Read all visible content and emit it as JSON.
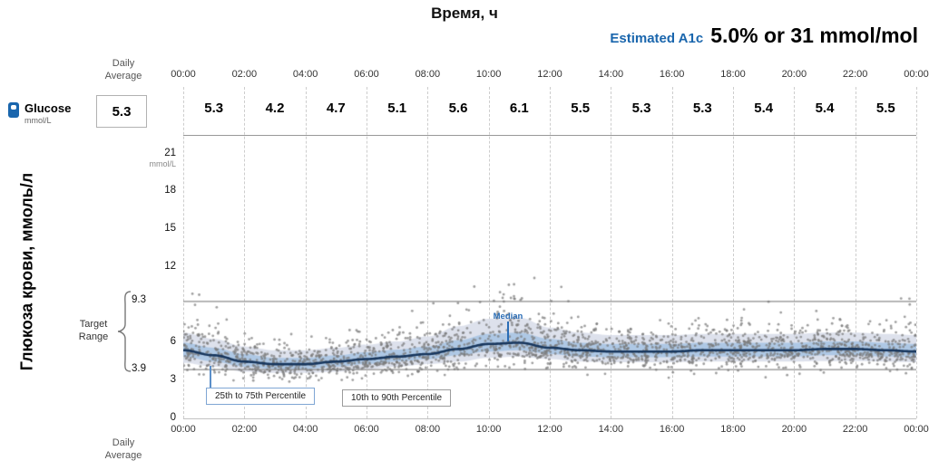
{
  "title": {
    "top": "Время, ч"
  },
  "a1c": {
    "label": "Estimated A1c",
    "value": "5.0% or 31 mmol/mol"
  },
  "left_panel": {
    "daily_average_label": "Daily Average",
    "glucose_label": "Glucose",
    "glucose_unit": "mmol/L",
    "glucose_daily_average": "5.3",
    "y_axis_title": "Глюкоза крови, ммоль/л",
    "target_range_label": "Target Range"
  },
  "legend": {
    "p25_75": "25th to 75th Percentile",
    "p10_90": "10th to 90th Percentile",
    "median": "Median"
  },
  "colors": {
    "accent_blue": "#1a66ad",
    "median_line": "#17365d",
    "median_label": "#2a6db6",
    "band_25_75": "rgba(167,196,228,0.85)",
    "band_10_90": "rgba(213,218,231,0.8)",
    "dot": "#787878",
    "grid": "#cdcdcd",
    "target_line": "#8a8a8a"
  },
  "chart_data": {
    "type": "line",
    "title": "Время, ч",
    "xlabel": "Время, ч",
    "ylabel": "Глюкоза крови, ммоль/л",
    "ylim": [
      0,
      21
    ],
    "grid": "vertical-dashed",
    "legend_position": "bottom-left-inside",
    "target_range": [
      3.9,
      9.3
    ],
    "x_tick_labels": [
      "00:00",
      "02:00",
      "04:00",
      "06:00",
      "08:00",
      "10:00",
      "12:00",
      "14:00",
      "16:00",
      "18:00",
      "20:00",
      "22:00",
      "00:00"
    ],
    "y_ticks": [
      {
        "value": 21,
        "label": "21",
        "unit": "mmol/L"
      },
      {
        "value": 18,
        "label": "18"
      },
      {
        "value": 15,
        "label": "15"
      },
      {
        "value": 12,
        "label": "12"
      },
      {
        "value": 9.3,
        "label": "9.3",
        "outer": true
      },
      {
        "value": 6,
        "label": "6"
      },
      {
        "value": 3.9,
        "label": "3.9",
        "outer": true
      },
      {
        "value": 3,
        "label": "3"
      },
      {
        "value": 0,
        "label": "0"
      }
    ],
    "daily_averages": [
      "5.3",
      "4.2",
      "4.7",
      "5.1",
      "5.6",
      "6.1",
      "5.5",
      "5.3",
      "5.3",
      "5.4",
      "5.4",
      "5.5"
    ],
    "overall_daily_average": "5.3",
    "x_hours": [
      0,
      1,
      2,
      3,
      4,
      5,
      6,
      7,
      8,
      9,
      10,
      11,
      12,
      13,
      14,
      15,
      16,
      17,
      18,
      19,
      20,
      21,
      22,
      23,
      24
    ],
    "median": [
      5.4,
      5.0,
      4.5,
      4.3,
      4.3,
      4.5,
      4.7,
      4.9,
      5.1,
      5.5,
      5.9,
      6.0,
      5.6,
      5.4,
      5.3,
      5.3,
      5.3,
      5.4,
      5.4,
      5.4,
      5.4,
      5.5,
      5.5,
      5.4,
      5.3
    ],
    "p25": [
      4.9,
      4.5,
      4.1,
      3.9,
      3.9,
      4.1,
      4.3,
      4.5,
      4.7,
      5.0,
      5.3,
      5.4,
      5.1,
      4.9,
      4.85,
      4.85,
      4.85,
      4.9,
      4.9,
      4.9,
      4.9,
      5.0,
      5.0,
      4.9,
      4.85
    ],
    "p75": [
      6.0,
      5.6,
      5.1,
      4.8,
      4.8,
      5.0,
      5.25,
      5.45,
      5.7,
      6.2,
      6.7,
      6.8,
      6.3,
      6.0,
      5.9,
      5.9,
      5.9,
      6.0,
      6.0,
      6.0,
      6.0,
      6.1,
      6.1,
      6.0,
      5.9
    ],
    "p10": [
      4.4,
      4.1,
      3.7,
      3.6,
      3.6,
      3.7,
      3.9,
      4.1,
      4.3,
      4.5,
      4.8,
      4.9,
      4.7,
      4.5,
      4.45,
      4.45,
      4.45,
      4.5,
      4.5,
      4.5,
      4.5,
      4.55,
      4.55,
      4.5,
      4.45
    ],
    "p90": [
      6.8,
      6.3,
      5.7,
      5.4,
      5.4,
      5.6,
      5.85,
      6.1,
      6.5,
      7.3,
      7.9,
      8.0,
      7.2,
      6.8,
      6.6,
      6.6,
      6.6,
      6.7,
      6.7,
      6.7,
      6.7,
      6.8,
      6.8,
      6.7,
      6.6
    ],
    "scatter": {
      "count": 2300,
      "seed": 42
    }
  }
}
